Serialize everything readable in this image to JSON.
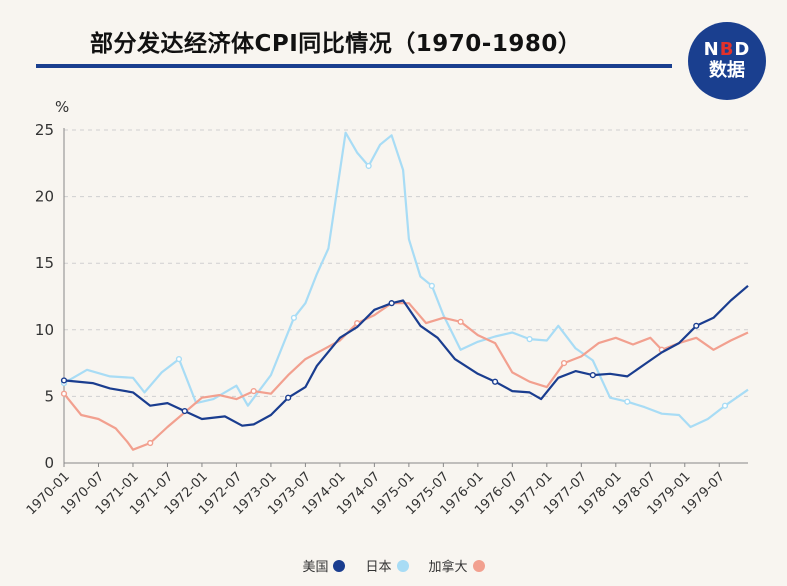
{
  "header": {
    "title": "部分发达经济体CPI同比情况（1970-1980）",
    "logo_top_left": "N",
    "logo_top_accent": "B",
    "logo_top_right": "D",
    "logo_bottom": "数据"
  },
  "colors": {
    "us": "#1a3d8f",
    "japan": "#a8dcf5",
    "canada": "#f2a08f",
    "grid": "#cfcfcf",
    "title_rule": "#1a3f8f"
  },
  "chart_data": {
    "type": "line",
    "title": "部分发达经济体CPI同比情况（1970-1980）",
    "ylabel": "%",
    "ylim": [
      0,
      25
    ],
    "yticks": [
      0,
      5,
      10,
      15,
      20,
      25
    ],
    "xlim": [
      "1970-01",
      "1979-12"
    ],
    "xtick_labels": [
      "1970-01",
      "1970-07",
      "1971-01",
      "1971-07",
      "1972-01",
      "1972-07",
      "1973-01",
      "1973-07",
      "1974-01",
      "1974-07",
      "1975-01",
      "1975-07",
      "1976-01",
      "1976-07",
      "1977-01",
      "1977-07",
      "1978-01",
      "1978-07",
      "1979-01",
      "1979-07"
    ],
    "grid": "horizontal dashed",
    "legend_position": "bottom-center",
    "series": [
      {
        "name": "美国",
        "color": "#1a3d8f",
        "points": [
          [
            "1970-01",
            6.2
          ],
          [
            "1970-06",
            6.0
          ],
          [
            "1970-09",
            5.6
          ],
          [
            "1971-01",
            5.3
          ],
          [
            "1971-04",
            4.3
          ],
          [
            "1971-07",
            4.5
          ],
          [
            "1971-10",
            3.9
          ],
          [
            "1972-01",
            3.3
          ],
          [
            "1972-05",
            3.5
          ],
          [
            "1972-08",
            2.8
          ],
          [
            "1972-10",
            2.9
          ],
          [
            "1973-01",
            3.6
          ],
          [
            "1973-04",
            4.9
          ],
          [
            "1973-07",
            5.7
          ],
          [
            "1973-09",
            7.3
          ],
          [
            "1974-01",
            9.4
          ],
          [
            "1974-04",
            10.2
          ],
          [
            "1974-07",
            11.5
          ],
          [
            "1974-10",
            12.0
          ],
          [
            "1974-12",
            12.2
          ],
          [
            "1975-03",
            10.3
          ],
          [
            "1975-06",
            9.4
          ],
          [
            "1975-09",
            7.8
          ],
          [
            "1976-01",
            6.7
          ],
          [
            "1976-04",
            6.1
          ],
          [
            "1976-07",
            5.4
          ],
          [
            "1976-10",
            5.3
          ],
          [
            "1976-12",
            4.8
          ],
          [
            "1977-03",
            6.4
          ],
          [
            "1977-06",
            6.9
          ],
          [
            "1977-09",
            6.6
          ],
          [
            "1977-12",
            6.7
          ],
          [
            "1978-03",
            6.5
          ],
          [
            "1978-06",
            7.4
          ],
          [
            "1978-09",
            8.3
          ],
          [
            "1978-12",
            9.0
          ],
          [
            "1979-03",
            10.3
          ],
          [
            "1979-06",
            10.9
          ],
          [
            "1979-09",
            12.2
          ],
          [
            "1979-12",
            13.3
          ]
        ]
      },
      {
        "name": "日本",
        "color": "#a8dcf5",
        "points": [
          [
            "1970-01",
            6.0
          ],
          [
            "1970-05",
            7.0
          ],
          [
            "1970-09",
            6.5
          ],
          [
            "1971-01",
            6.4
          ],
          [
            "1971-03",
            5.3
          ],
          [
            "1971-06",
            6.8
          ],
          [
            "1971-09",
            7.8
          ],
          [
            "1971-12",
            4.5
          ],
          [
            "1972-03",
            4.8
          ],
          [
            "1972-07",
            5.8
          ],
          [
            "1972-09",
            4.3
          ],
          [
            "1973-01",
            6.6
          ],
          [
            "1973-05",
            10.9
          ],
          [
            "1973-07",
            12.0
          ],
          [
            "1973-09",
            14.2
          ],
          [
            "1973-11",
            16.1
          ],
          [
            "1974-02",
            24.8
          ],
          [
            "1974-04",
            23.3
          ],
          [
            "1974-06",
            22.3
          ],
          [
            "1974-08",
            23.9
          ],
          [
            "1974-10",
            24.6
          ],
          [
            "1974-12",
            22.0
          ],
          [
            "1975-01",
            16.8
          ],
          [
            "1975-03",
            14.0
          ],
          [
            "1975-05",
            13.3
          ],
          [
            "1975-07",
            11.1
          ],
          [
            "1975-10",
            8.5
          ],
          [
            "1976-01",
            9.1
          ],
          [
            "1976-04",
            9.5
          ],
          [
            "1976-07",
            9.8
          ],
          [
            "1976-10",
            9.3
          ],
          [
            "1977-01",
            9.2
          ],
          [
            "1977-03",
            10.3
          ],
          [
            "1977-06",
            8.6
          ],
          [
            "1977-09",
            7.7
          ],
          [
            "1977-12",
            4.9
          ],
          [
            "1978-03",
            4.6
          ],
          [
            "1978-06",
            4.2
          ],
          [
            "1978-09",
            3.7
          ],
          [
            "1978-12",
            3.6
          ],
          [
            "1979-02",
            2.7
          ],
          [
            "1979-05",
            3.3
          ],
          [
            "1979-08",
            4.3
          ],
          [
            "1979-12",
            5.5
          ]
        ]
      },
      {
        "name": "加拿大",
        "color": "#f2a08f",
        "points": [
          [
            "1970-01",
            5.2
          ],
          [
            "1970-04",
            3.6
          ],
          [
            "1970-07",
            3.3
          ],
          [
            "1970-10",
            2.6
          ],
          [
            "1970-12",
            1.6
          ],
          [
            "1971-01",
            1.0
          ],
          [
            "1971-04",
            1.5
          ],
          [
            "1971-07",
            2.7
          ],
          [
            "1971-10",
            3.8
          ],
          [
            "1972-01",
            4.9
          ],
          [
            "1972-04",
            5.1
          ],
          [
            "1972-07",
            4.8
          ],
          [
            "1972-10",
            5.4
          ],
          [
            "1973-01",
            5.2
          ],
          [
            "1973-04",
            6.6
          ],
          [
            "1973-07",
            7.8
          ],
          [
            "1973-10",
            8.5
          ],
          [
            "1974-01",
            9.2
          ],
          [
            "1974-04",
            10.5
          ],
          [
            "1974-07",
            11.1
          ],
          [
            "1974-10",
            12.0
          ],
          [
            "1975-01",
            12.0
          ],
          [
            "1975-04",
            10.5
          ],
          [
            "1975-07",
            10.9
          ],
          [
            "1975-10",
            10.6
          ],
          [
            "1976-01",
            9.6
          ],
          [
            "1976-04",
            9.0
          ],
          [
            "1976-07",
            6.8
          ],
          [
            "1976-10",
            6.1
          ],
          [
            "1977-01",
            5.7
          ],
          [
            "1977-04",
            7.5
          ],
          [
            "1977-07",
            8.0
          ],
          [
            "1977-10",
            9.0
          ],
          [
            "1978-01",
            9.4
          ],
          [
            "1978-04",
            8.9
          ],
          [
            "1978-07",
            9.4
          ],
          [
            "1978-09",
            8.5
          ],
          [
            "1978-12",
            9.0
          ],
          [
            "1979-03",
            9.4
          ],
          [
            "1979-06",
            8.5
          ],
          [
            "1979-09",
            9.2
          ],
          [
            "1979-12",
            9.8
          ]
        ]
      }
    ]
  },
  "legend": {
    "us": "美国",
    "japan": "日本",
    "canada": "加拿大"
  }
}
